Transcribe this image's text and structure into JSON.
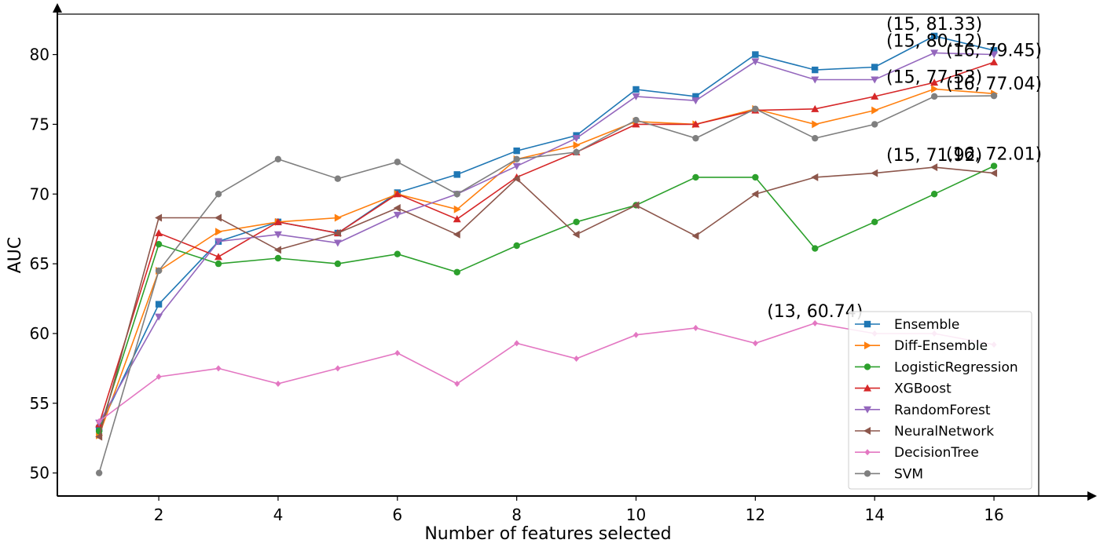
{
  "chart_data": {
    "type": "line",
    "xlabel": "Number of features selected",
    "ylabel": "AUC",
    "xlim": [
      0.3,
      16.75
    ],
    "ylim": [
      48.35,
      82.9
    ],
    "xticks": [
      2,
      4,
      6,
      8,
      10,
      12,
      14,
      16
    ],
    "yticks": [
      50,
      55,
      60,
      65,
      70,
      75,
      80
    ],
    "legend_position": "lower-right",
    "x": [
      1,
      2,
      3,
      4,
      5,
      6,
      7,
      8,
      9,
      10,
      11,
      12,
      13,
      14,
      15,
      16
    ],
    "series": [
      {
        "name": "Ensemble",
        "color": "#1f77b4",
        "marker": "square",
        "values": [
          53.2,
          62.1,
          66.6,
          68.0,
          67.2,
          70.1,
          71.4,
          73.1,
          74.2,
          77.5,
          77.0,
          80.0,
          78.9,
          79.1,
          81.33,
          80.3
        ]
      },
      {
        "name": "Diff-Ensemble",
        "color": "#ff7f0e",
        "marker": "triangle-right",
        "values": [
          52.7,
          64.5,
          67.3,
          68.0,
          68.3,
          70.0,
          68.9,
          72.5,
          73.5,
          75.2,
          75.0,
          76.1,
          75.0,
          76.0,
          77.53,
          77.2
        ]
      },
      {
        "name": "LogisticRegression",
        "color": "#2ca02c",
        "marker": "circle",
        "values": [
          53.0,
          66.4,
          65.0,
          65.4,
          65.0,
          65.7,
          64.4,
          66.3,
          68.0,
          69.2,
          71.2,
          71.2,
          66.1,
          68.0,
          70.0,
          72.01
        ]
      },
      {
        "name": "XGBoost",
        "color": "#d62728",
        "marker": "triangle-up",
        "values": [
          53.5,
          67.2,
          65.5,
          68.0,
          67.2,
          70.0,
          68.2,
          71.2,
          73.0,
          75.0,
          75.0,
          76.0,
          76.1,
          77.0,
          78.0,
          79.45
        ]
      },
      {
        "name": "RandomForest",
        "color": "#9467bd",
        "marker": "triangle-down",
        "values": [
          53.6,
          61.2,
          66.6,
          67.1,
          66.5,
          68.5,
          70.0,
          72.0,
          74.0,
          77.0,
          76.7,
          79.5,
          78.2,
          78.2,
          80.12,
          80.0
        ]
      },
      {
        "name": "NeuralNetwork",
        "color": "#8c564b",
        "marker": "triangle-left",
        "values": [
          52.6,
          68.3,
          68.3,
          66.0,
          67.2,
          69.0,
          67.1,
          71.1,
          67.1,
          69.2,
          67.0,
          70.0,
          71.2,
          71.5,
          71.92,
          71.5
        ]
      },
      {
        "name": "DecisionTree",
        "color": "#e377c2",
        "marker": "diamond",
        "values": [
          53.7,
          56.9,
          57.5,
          56.4,
          57.5,
          58.6,
          56.4,
          59.3,
          58.2,
          59.9,
          60.4,
          59.3,
          60.74,
          60.0,
          60.0,
          59.2
        ]
      },
      {
        "name": "SVM",
        "color": "#7f7f7f",
        "marker": "circle",
        "values": [
          50.0,
          64.5,
          70.0,
          72.5,
          71.1,
          72.3,
          70.0,
          72.5,
          73.0,
          75.3,
          74.0,
          76.1,
          74.0,
          75.0,
          77.0,
          77.04
        ]
      }
    ],
    "annotations": [
      {
        "text": "(15, 81.33)",
        "x": 15,
        "y": 81.33,
        "series": "Ensemble"
      },
      {
        "text": "(15, 80.12)",
        "x": 15,
        "y": 80.12,
        "series": "RandomForest"
      },
      {
        "text": "(16, 79.45)",
        "x": 16,
        "y": 79.45,
        "series": "XGBoost"
      },
      {
        "text": "(15, 77.53)",
        "x": 15,
        "y": 77.53,
        "series": "Diff-Ensemble"
      },
      {
        "text": "(16, 77.04)",
        "x": 16,
        "y": 77.04,
        "series": "SVM"
      },
      {
        "text": "(15, 71.92)",
        "x": 15,
        "y": 71.92,
        "series": "NeuralNetwork"
      },
      {
        "text": "(16, 72.01)",
        "x": 16,
        "y": 72.01,
        "series": "LogisticRegression"
      },
      {
        "text": "(13, 60.74)",
        "x": 13,
        "y": 60.74,
        "series": "DecisionTree"
      }
    ]
  }
}
